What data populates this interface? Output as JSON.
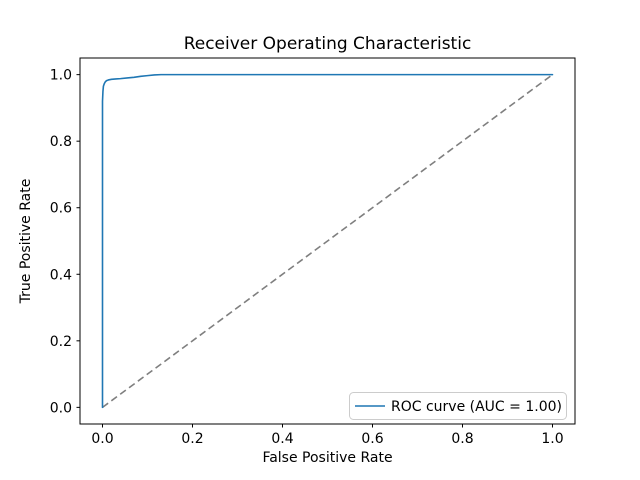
{
  "chart_data": {
    "type": "line",
    "title": "Receiver Operating Characteristic",
    "xlabel": "False Positive Rate",
    "ylabel": "True Positive Rate",
    "axis_range": {
      "x": [
        -0.05,
        1.05
      ],
      "y": [
        -0.05,
        1.05
      ]
    },
    "xlim": [
      0.0,
      1.0
    ],
    "ylim": [
      0.0,
      1.0
    ],
    "grid": false,
    "xticks": {
      "values": [
        0.0,
        0.2,
        0.4,
        0.6,
        0.8,
        1.0
      ],
      "labels": [
        "0.0",
        "0.2",
        "0.4",
        "0.6",
        "0.8",
        "1.0"
      ]
    },
    "yticks": {
      "values": [
        0.0,
        0.2,
        0.4,
        0.6,
        0.8,
        1.0
      ],
      "labels": [
        "0.0",
        "0.2",
        "0.4",
        "0.6",
        "0.8",
        "1.0"
      ]
    },
    "series": [
      {
        "name": "ROC curve (AUC = 1.00)",
        "color": "#1f77b4",
        "style": "solid",
        "x": [
          0.0,
          0.0,
          0.001,
          0.002,
          0.004,
          0.006,
          0.009,
          0.013,
          0.02,
          0.03,
          0.04,
          0.055,
          0.07,
          0.085,
          0.1,
          0.115,
          0.13,
          1.0
        ],
        "y": [
          0.0,
          0.92,
          0.95,
          0.965,
          0.973,
          0.978,
          0.982,
          0.984,
          0.986,
          0.987,
          0.988,
          0.99,
          0.992,
          0.995,
          0.997,
          0.999,
          1.0,
          1.0
        ]
      },
      {
        "name": "chance-diagonal",
        "color": "#7f7f7f",
        "style": "dashed",
        "x": [
          0.0,
          1.0
        ],
        "y": [
          0.0,
          1.0
        ]
      }
    ],
    "legend": {
      "position": "lower right",
      "entries": [
        "ROC curve (AUC = 1.00)"
      ]
    },
    "auc": "1.00"
  }
}
